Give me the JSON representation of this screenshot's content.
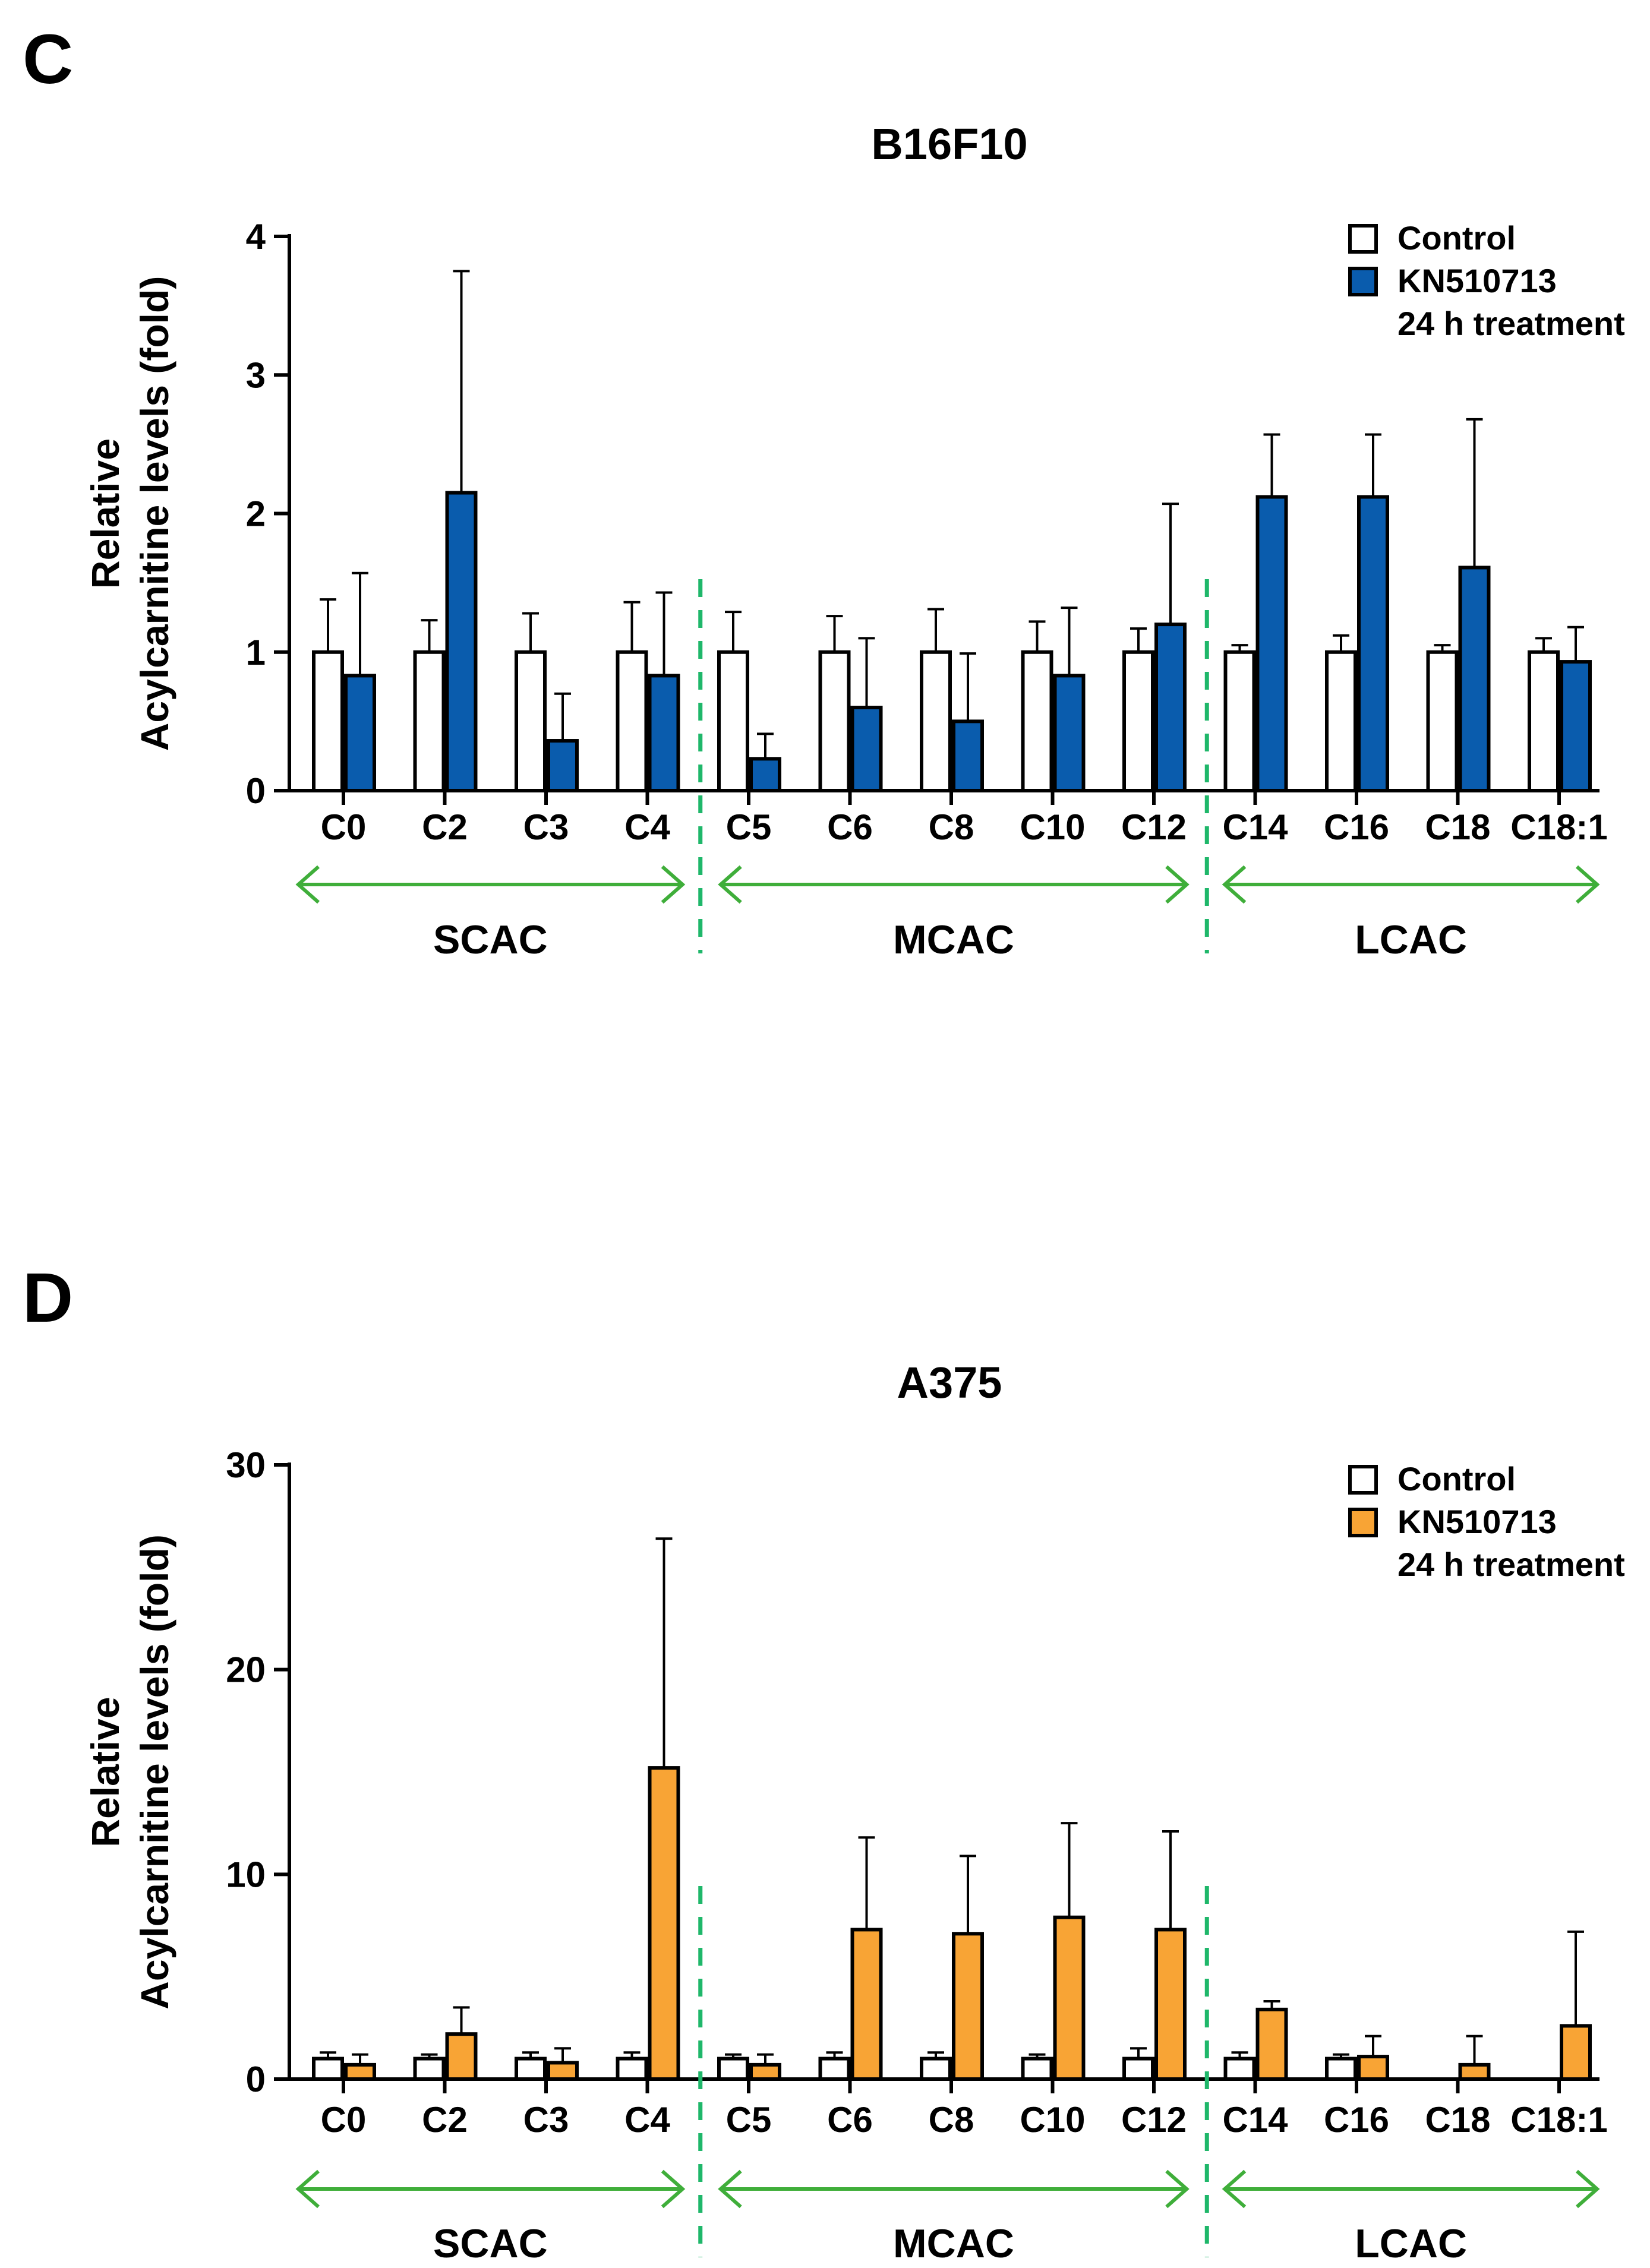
{
  "chart_data": [
    {
      "panel_letter": "C",
      "type": "bar",
      "title": "B16F10",
      "ylabel_line1": "Relative",
      "ylabel_line2": "Acylcarnitine levels (fold)",
      "xlabel": "",
      "ylim": [
        0,
        4
      ],
      "yticks": [
        "0",
        "1",
        "2",
        "3",
        "4"
      ],
      "categories": [
        "C0",
        "C2",
        "C3",
        "C4",
        "C5",
        "C6",
        "C8",
        "C10",
        "C12",
        "C14",
        "C16",
        "C18",
        "C18:1"
      ],
      "series": [
        {
          "name": "Control",
          "values": [
            1.0,
            1.0,
            1.0,
            1.0,
            1.0,
            1.0,
            1.0,
            1.0,
            1.0,
            1.0,
            1.0,
            1.0,
            1.0
          ],
          "errors": [
            0.38,
            0.23,
            0.28,
            0.36,
            0.29,
            0.26,
            0.31,
            0.22,
            0.17,
            0.05,
            0.12,
            0.05,
            0.1
          ],
          "color": "#ffffff"
        },
        {
          "name": "KN510713",
          "values": [
            0.83,
            2.15,
            0.36,
            0.83,
            0.23,
            0.6,
            0.5,
            0.83,
            1.2,
            2.12,
            2.12,
            1.61,
            0.93
          ],
          "errors": [
            0.74,
            1.6,
            0.34,
            0.6,
            0.18,
            0.5,
            0.49,
            0.49,
            0.87,
            0.45,
            0.45,
            1.07,
            0.25
          ],
          "color": "#0a5cad"
        }
      ],
      "legend": {
        "control": "Control",
        "treatment": "KN510713",
        "treatment_sub": "24 h treatment",
        "position": "top-right"
      },
      "groups": [
        {
          "label": "SCAC",
          "from": "C0",
          "to": "C4"
        },
        {
          "label": "MCAC",
          "from": "C5",
          "to": "C12"
        },
        {
          "label": "LCAC",
          "from": "C14",
          "to": "C18:1"
        }
      ],
      "arrow_color": "#3fae3a",
      "divider_color": "#1fb76a"
    },
    {
      "panel_letter": "D",
      "type": "bar",
      "title": "A375",
      "ylabel_line1": "Relative",
      "ylabel_line2": "Acylcarnitine levels (fold)",
      "xlabel": "",
      "ylim": [
        0,
        30
      ],
      "yticks": [
        "0",
        "10",
        "20",
        "30"
      ],
      "categories": [
        "C0",
        "C2",
        "C3",
        "C4",
        "C5",
        "C6",
        "C8",
        "C10",
        "C12",
        "C14",
        "C16",
        "C18",
        "C18:1"
      ],
      "series": [
        {
          "name": "Control",
          "values": [
            1.0,
            1.0,
            1.0,
            1.0,
            1.0,
            1.0,
            1.0,
            1.0,
            1.0,
            1.0,
            1.0,
            null,
            null
          ],
          "errors": [
            0.3,
            0.2,
            0.3,
            0.3,
            0.2,
            0.3,
            0.3,
            0.2,
            0.5,
            0.3,
            0.2,
            null,
            null
          ],
          "color": "#ffffff"
        },
        {
          "name": "KN510713",
          "values": [
            0.7,
            2.2,
            0.8,
            15.2,
            0.7,
            7.3,
            7.1,
            7.9,
            7.3,
            3.4,
            1.1,
            0.7,
            2.6
          ],
          "errors": [
            0.5,
            1.3,
            0.7,
            11.2,
            0.5,
            4.5,
            3.8,
            4.6,
            4.8,
            0.4,
            1.0,
            1.4,
            4.6
          ],
          "color": "#f8a435"
        }
      ],
      "legend": {
        "control": "Control",
        "treatment": "KN510713",
        "treatment_sub": "24 h treatment",
        "position": "top-right"
      },
      "groups": [
        {
          "label": "SCAC",
          "from": "C0",
          "to": "C4"
        },
        {
          "label": "MCAC",
          "from": "C5",
          "to": "C12"
        },
        {
          "label": "LCAC",
          "from": "C14",
          "to": "C18:1"
        }
      ],
      "arrow_color": "#3fae3a",
      "divider_color": "#1fb76a"
    }
  ]
}
